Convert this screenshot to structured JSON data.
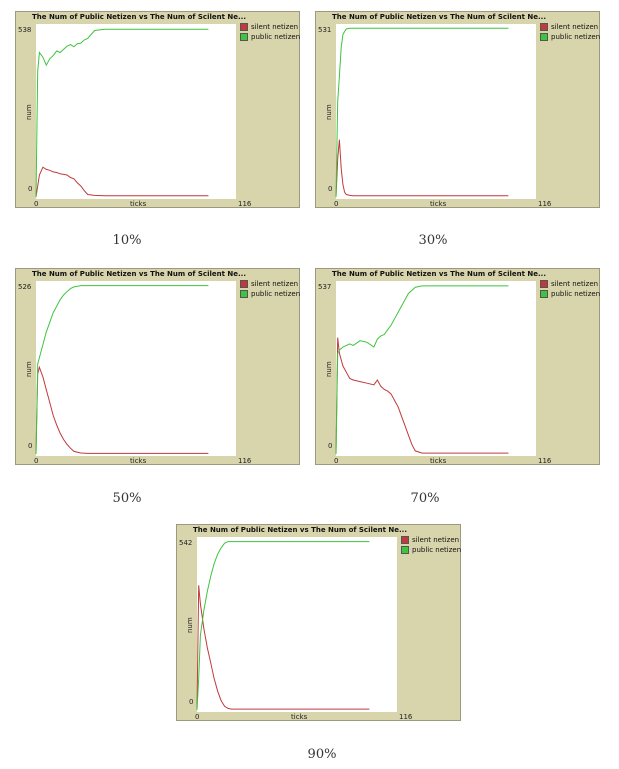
{
  "colors": {
    "silent": "#c0393b",
    "public": "#3ec43e",
    "panel_bg": "#d8d5ac"
  },
  "chart_data": [
    {
      "type": "line",
      "title": "The Num of Public Netizen vs The Num of Scilent Ne...",
      "caption": "10%",
      "xlabel": "ticks",
      "ylabel": "num",
      "xlim": [
        0,
        116
      ],
      "ylim": [
        0,
        538
      ],
      "x_tick_labels": [
        "0",
        "116"
      ],
      "y_tick_labels": [
        "0",
        "538"
      ],
      "series": [
        {
          "name": "silent netizen",
          "color": "#c0393b",
          "x": [
            0,
            2,
            4,
            6,
            8,
            10,
            12,
            14,
            16,
            18,
            20,
            22,
            24,
            26,
            28,
            30,
            34,
            40,
            60,
            80,
            100
          ],
          "y": [
            0,
            70,
            95,
            88,
            85,
            80,
            78,
            74,
            72,
            70,
            62,
            58,
            45,
            35,
            20,
            8,
            5,
            4,
            4,
            4,
            4
          ]
        },
        {
          "name": "public netizen",
          "color": "#3ec43e",
          "x": [
            0,
            1,
            2,
            4,
            6,
            8,
            10,
            12,
            14,
            16,
            18,
            20,
            22,
            24,
            26,
            28,
            30,
            34,
            40,
            60,
            80,
            100
          ],
          "y": [
            0,
            400,
            460,
            445,
            420,
            440,
            450,
            465,
            460,
            470,
            480,
            485,
            478,
            488,
            490,
            500,
            505,
            530,
            534,
            534,
            534,
            534
          ]
        }
      ]
    },
    {
      "type": "line",
      "title": "The Num of Public Netizen vs The Num of Scilent Ne...",
      "caption": "30%",
      "xlabel": "ticks",
      "ylabel": "num",
      "xlim": [
        0,
        116
      ],
      "ylim": [
        0,
        531
      ],
      "x_tick_labels": [
        "0",
        "116"
      ],
      "y_tick_labels": [
        "0",
        "531"
      ],
      "series": [
        {
          "name": "silent netizen",
          "color": "#c0393b",
          "x": [
            0,
            1,
            2,
            3,
            4,
            5,
            6,
            8,
            10,
            20,
            50,
            100
          ],
          "y": [
            0,
            120,
            180,
            90,
            40,
            15,
            8,
            5,
            4,
            4,
            4,
            4
          ]
        },
        {
          "name": "public netizen",
          "color": "#3ec43e",
          "x": [
            0,
            1,
            2,
            3,
            4,
            5,
            6,
            8,
            10,
            20,
            50,
            100
          ],
          "y": [
            0,
            300,
            380,
            470,
            510,
            520,
            528,
            530,
            530,
            530,
            530,
            530
          ]
        }
      ]
    },
    {
      "type": "line",
      "title": "The Num of Public Netizen vs The Num of Scilent Ne...",
      "caption": "50%",
      "xlabel": "ticks",
      "ylabel": "num",
      "xlim": [
        0,
        116
      ],
      "ylim": [
        0,
        526
      ],
      "x_tick_labels": [
        "0",
        "116"
      ],
      "y_tick_labels": [
        "0",
        "526"
      ],
      "series": [
        {
          "name": "silent netizen",
          "color": "#c0393b",
          "x": [
            0,
            1,
            2,
            4,
            6,
            8,
            10,
            12,
            14,
            16,
            18,
            20,
            22,
            26,
            30,
            40,
            60,
            80,
            100
          ],
          "y": [
            0,
            250,
            270,
            240,
            200,
            160,
            120,
            90,
            65,
            45,
            30,
            18,
            8,
            3,
            2,
            2,
            2,
            2,
            2
          ]
        },
        {
          "name": "public netizen",
          "color": "#3ec43e",
          "x": [
            0,
            1,
            2,
            4,
            6,
            8,
            10,
            12,
            14,
            16,
            18,
            20,
            22,
            24,
            26,
            30,
            40,
            60,
            80,
            100
          ],
          "y": [
            0,
            280,
            300,
            340,
            380,
            410,
            440,
            460,
            480,
            495,
            505,
            515,
            520,
            522,
            524,
            524,
            524,
            524,
            524,
            524
          ]
        }
      ]
    },
    {
      "type": "line",
      "title": "The Num of Public Netizen vs The Num of Scilent Ne...",
      "caption": "70%",
      "xlabel": "ticks",
      "ylabel": "num",
      "xlim": [
        0,
        116
      ],
      "ylim": [
        0,
        537
      ],
      "x_tick_labels": [
        "0",
        "116"
      ],
      "y_tick_labels": [
        "0",
        "537"
      ],
      "series": [
        {
          "name": "silent netizen",
          "color": "#c0393b",
          "x": [
            0,
            1,
            2,
            4,
            6,
            8,
            10,
            14,
            18,
            22,
            24,
            26,
            28,
            30,
            32,
            34,
            36,
            38,
            40,
            42,
            44,
            46,
            50,
            60,
            80,
            100
          ],
          "y": [
            0,
            370,
            320,
            280,
            260,
            240,
            235,
            230,
            225,
            220,
            235,
            215,
            205,
            200,
            190,
            170,
            150,
            120,
            90,
            60,
            30,
            10,
            3,
            3,
            3,
            3
          ]
        },
        {
          "name": "public netizen",
          "color": "#3ec43e",
          "x": [
            0,
            1,
            2,
            4,
            6,
            8,
            10,
            14,
            18,
            22,
            24,
            26,
            28,
            30,
            32,
            34,
            36,
            38,
            40,
            42,
            44,
            46,
            50,
            60,
            80,
            100
          ],
          "y": [
            0,
            320,
            330,
            340,
            345,
            350,
            345,
            360,
            355,
            340,
            365,
            375,
            380,
            395,
            410,
            430,
            450,
            470,
            490,
            510,
            520,
            530,
            534,
            534,
            534,
            534
          ]
        }
      ]
    },
    {
      "type": "line",
      "title": "The Num of Public Netizen vs The Num of Scilent Ne...",
      "caption": "90%",
      "xlabel": "ticks",
      "ylabel": "num",
      "xlim": [
        0,
        116
      ],
      "ylim": [
        0,
        542
      ],
      "x_tick_labels": [
        "0",
        "116"
      ],
      "y_tick_labels": [
        "0",
        "542"
      ],
      "series": [
        {
          "name": "silent netizen",
          "color": "#c0393b",
          "x": [
            0,
            1,
            2,
            4,
            6,
            8,
            10,
            12,
            14,
            16,
            18,
            20,
            25,
            40,
            60,
            80,
            100
          ],
          "y": [
            0,
            400,
            340,
            260,
            200,
            150,
            100,
            60,
            30,
            12,
            5,
            3,
            3,
            3,
            3,
            3,
            3
          ]
        },
        {
          "name": "public netizen",
          "color": "#3ec43e",
          "x": [
            0,
            1,
            2,
            4,
            6,
            8,
            10,
            12,
            14,
            16,
            18,
            20,
            25,
            40,
            60,
            80,
            100
          ],
          "y": [
            0,
            100,
            240,
            320,
            380,
            430,
            470,
            500,
            520,
            535,
            540,
            540,
            540,
            540,
            540,
            540,
            540
          ]
        }
      ]
    }
  ]
}
